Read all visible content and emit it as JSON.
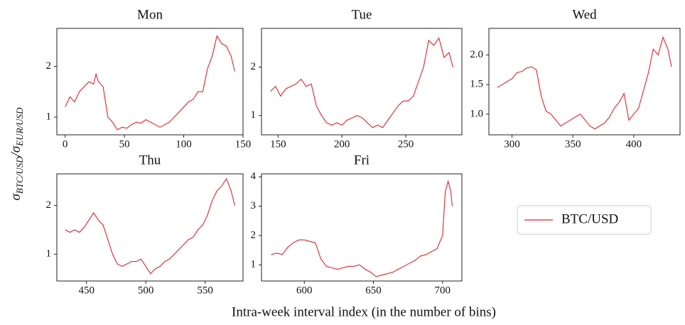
{
  "figure": {
    "xlabel": "Intra-week interval index (in the number of bins)",
    "ylabel": [
      "σ",
      "BTC/USD",
      "/σ",
      "EUR/USD"
    ]
  },
  "chart_data": [
    {
      "type": "line",
      "title": "Mon",
      "x": [
        0,
        4,
        8,
        12,
        16,
        20,
        24,
        26,
        28,
        32,
        36,
        40,
        44,
        48,
        52,
        56,
        60,
        64,
        68,
        72,
        76,
        80,
        84,
        88,
        92,
        96,
        100,
        104,
        108,
        112,
        116,
        120,
        124,
        128,
        132,
        136,
        140,
        143
      ],
      "series": [
        {
          "name": "BTC/USD",
          "color": "#e8202a",
          "values": [
            1.2,
            1.4,
            1.3,
            1.5,
            1.6,
            1.7,
            1.65,
            1.85,
            1.7,
            1.6,
            1.0,
            0.9,
            0.75,
            0.8,
            0.78,
            0.85,
            0.9,
            0.88,
            0.95,
            0.9,
            0.85,
            0.8,
            0.85,
            0.9,
            1.0,
            1.1,
            1.2,
            1.3,
            1.35,
            1.5,
            1.5,
            1.95,
            2.2,
            2.6,
            2.45,
            2.4,
            2.2,
            1.9
          ]
        }
      ],
      "xlim": [
        -7,
        150
      ],
      "ylim": [
        0.65,
        2.75
      ],
      "xticks": [
        0,
        50,
        100,
        150
      ],
      "yticks": [
        1,
        2
      ]
    },
    {
      "type": "line",
      "title": "Tue",
      "x": [
        144,
        148,
        152,
        156,
        160,
        164,
        168,
        172,
        176,
        180,
        184,
        188,
        192,
        196,
        200,
        204,
        208,
        212,
        216,
        220,
        224,
        228,
        232,
        236,
        240,
        244,
        248,
        252,
        256,
        260,
        264,
        268,
        272,
        276,
        280,
        284,
        287
      ],
      "series": [
        {
          "color": "#e8202a",
          "values": [
            1.5,
            1.6,
            1.4,
            1.55,
            1.6,
            1.65,
            1.75,
            1.6,
            1.65,
            1.2,
            1.0,
            0.85,
            0.8,
            0.85,
            0.8,
            0.9,
            0.95,
            1.0,
            0.95,
            0.85,
            0.75,
            0.8,
            0.75,
            0.9,
            1.05,
            1.2,
            1.3,
            1.3,
            1.4,
            1.7,
            2.0,
            2.55,
            2.45,
            2.6,
            2.2,
            2.3,
            2.0
          ]
        }
      ],
      "xlim": [
        137,
        294
      ],
      "ylim": [
        0.6,
        2.8
      ],
      "xticks": [
        150,
        200,
        250
      ],
      "yticks": [
        1,
        2
      ]
    },
    {
      "type": "line",
      "title": "Wed",
      "x": [
        288,
        292,
        296,
        300,
        304,
        308,
        312,
        316,
        320,
        324,
        328,
        332,
        336,
        340,
        344,
        348,
        352,
        356,
        360,
        364,
        368,
        372,
        376,
        380,
        384,
        388,
        392,
        396,
        400,
        404,
        408,
        412,
        416,
        420,
        424,
        428,
        431
      ],
      "series": [
        {
          "color": "#e8202a",
          "values": [
            1.45,
            1.5,
            1.55,
            1.6,
            1.7,
            1.72,
            1.78,
            1.8,
            1.75,
            1.3,
            1.05,
            1.0,
            0.9,
            0.8,
            0.85,
            0.9,
            0.95,
            1.0,
            0.9,
            0.8,
            0.75,
            0.8,
            0.85,
            0.95,
            1.1,
            1.2,
            1.35,
            0.9,
            1.0,
            1.1,
            1.4,
            1.7,
            2.1,
            2.0,
            2.3,
            2.1,
            1.8
          ]
        }
      ],
      "xlim": [
        281,
        438
      ],
      "ylim": [
        0.65,
        2.45
      ],
      "xticks": [
        300,
        350,
        400
      ],
      "yticks": [
        {
          "value": 1.0,
          "label": "1.0"
        },
        1.5,
        {
          "value": 2.0,
          "label": "2.0"
        }
      ]
    },
    {
      "type": "line",
      "title": "Thu",
      "x": [
        432,
        436,
        440,
        444,
        448,
        452,
        456,
        460,
        464,
        468,
        472,
        476,
        480,
        484,
        488,
        492,
        496,
        500,
        504,
        508,
        512,
        516,
        520,
        524,
        528,
        532,
        536,
        540,
        544,
        548,
        552,
        556,
        560,
        564,
        568,
        572,
        575
      ],
      "series": [
        {
          "color": "#e8202a",
          "values": [
            1.5,
            1.45,
            1.5,
            1.45,
            1.55,
            1.7,
            1.85,
            1.7,
            1.6,
            1.3,
            1.0,
            0.8,
            0.75,
            0.8,
            0.85,
            0.85,
            0.9,
            0.75,
            0.6,
            0.7,
            0.75,
            0.85,
            0.9,
            1.0,
            1.1,
            1.2,
            1.3,
            1.35,
            1.5,
            1.6,
            1.8,
            2.1,
            2.3,
            2.4,
            2.55,
            2.3,
            2.0
          ]
        }
      ],
      "xlim": [
        425,
        582
      ],
      "ylim": [
        0.45,
        2.65
      ],
      "xticks": [
        450,
        500,
        550
      ],
      "yticks": [
        1,
        2
      ]
    },
    {
      "type": "line",
      "title": "Fri",
      "x": [
        576,
        580,
        584,
        588,
        592,
        596,
        600,
        604,
        608,
        612,
        616,
        620,
        624,
        628,
        632,
        636,
        640,
        644,
        648,
        652,
        656,
        660,
        664,
        668,
        672,
        676,
        680,
        684,
        688,
        692,
        696,
        700,
        702,
        704,
        706,
        707
      ],
      "series": [
        {
          "color": "#e8202a",
          "values": [
            1.35,
            1.4,
            1.35,
            1.6,
            1.75,
            1.85,
            1.85,
            1.8,
            1.75,
            1.2,
            0.95,
            0.9,
            0.85,
            0.9,
            0.95,
            0.95,
            1.0,
            0.85,
            0.75,
            0.6,
            0.65,
            0.7,
            0.75,
            0.85,
            0.95,
            1.05,
            1.15,
            1.3,
            1.35,
            1.45,
            1.55,
            2.0,
            3.5,
            3.85,
            3.5,
            3.0
          ]
        }
      ],
      "xlim": [
        569,
        714
      ],
      "ylim": [
        0.45,
        4.1
      ],
      "xticks": [
        600,
        650,
        700
      ],
      "yticks": [
        1,
        2,
        3,
        4
      ]
    }
  ]
}
